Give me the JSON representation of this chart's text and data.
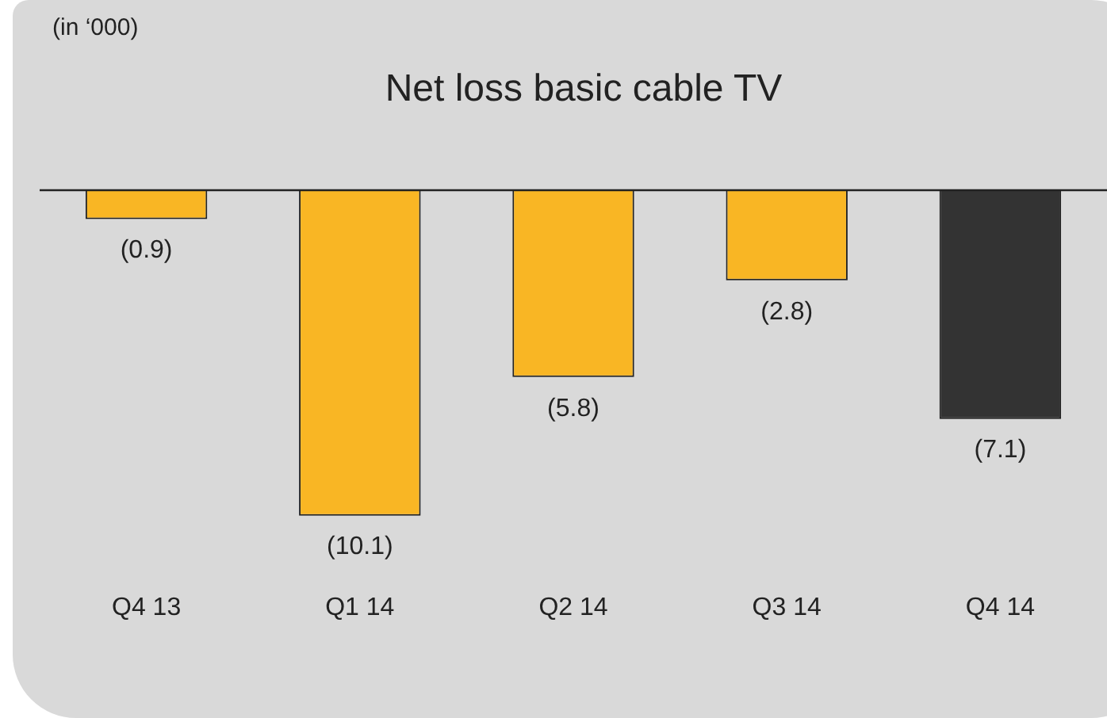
{
  "chart_data": {
    "type": "bar",
    "title": "Net loss basic cable TV",
    "annotations": [
      "(in ‘000)"
    ],
    "categories": [
      "Q4 13",
      "Q1 14",
      "Q2 14",
      "Q3 14",
      "Q4 14"
    ],
    "values": [
      -0.9,
      -10.1,
      -5.8,
      -2.8,
      -7.1
    ],
    "colors": [
      "#f9b624",
      "#f9b624",
      "#f9b624",
      "#f9b624",
      "#333333"
    ],
    "value_labels": [
      "(0.9)",
      "(10.1)",
      "(5.8)",
      "(2.8)",
      "(7.1)"
    ],
    "grid": false,
    "legend": false
  }
}
